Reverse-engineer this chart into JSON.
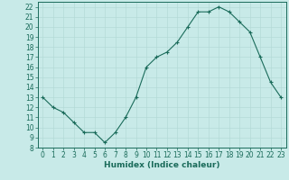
{
  "x": [
    0,
    1,
    2,
    3,
    4,
    5,
    6,
    7,
    8,
    9,
    10,
    11,
    12,
    13,
    14,
    15,
    16,
    17,
    18,
    19,
    20,
    21,
    22,
    23
  ],
  "y": [
    13,
    12,
    11.5,
    10.5,
    9.5,
    9.5,
    8.5,
    9.5,
    11,
    13,
    16,
    17,
    17.5,
    18.5,
    20,
    21.5,
    21.5,
    22,
    21.5,
    20.5,
    19.5,
    17,
    14.5,
    13
  ],
  "line_color": "#1a6b5a",
  "marker": "+",
  "background_color": "#c8eae8",
  "grid_color": "#b0d8d4",
  "xlabel": "Humidex (Indice chaleur)",
  "xlim": [
    -0.5,
    23.5
  ],
  "ylim": [
    8,
    22.5
  ],
  "yticks": [
    8,
    9,
    10,
    11,
    12,
    13,
    14,
    15,
    16,
    17,
    18,
    19,
    20,
    21,
    22
  ],
  "xticks": [
    0,
    1,
    2,
    3,
    4,
    5,
    6,
    7,
    8,
    9,
    10,
    11,
    12,
    13,
    14,
    15,
    16,
    17,
    18,
    19,
    20,
    21,
    22,
    23
  ],
  "tick_label_fontsize": 5.5,
  "xlabel_fontsize": 6.5,
  "axis_color": "#1a6b5a",
  "text_color": "#1a6b5a",
  "markersize": 3,
  "linewidth": 0.8
}
